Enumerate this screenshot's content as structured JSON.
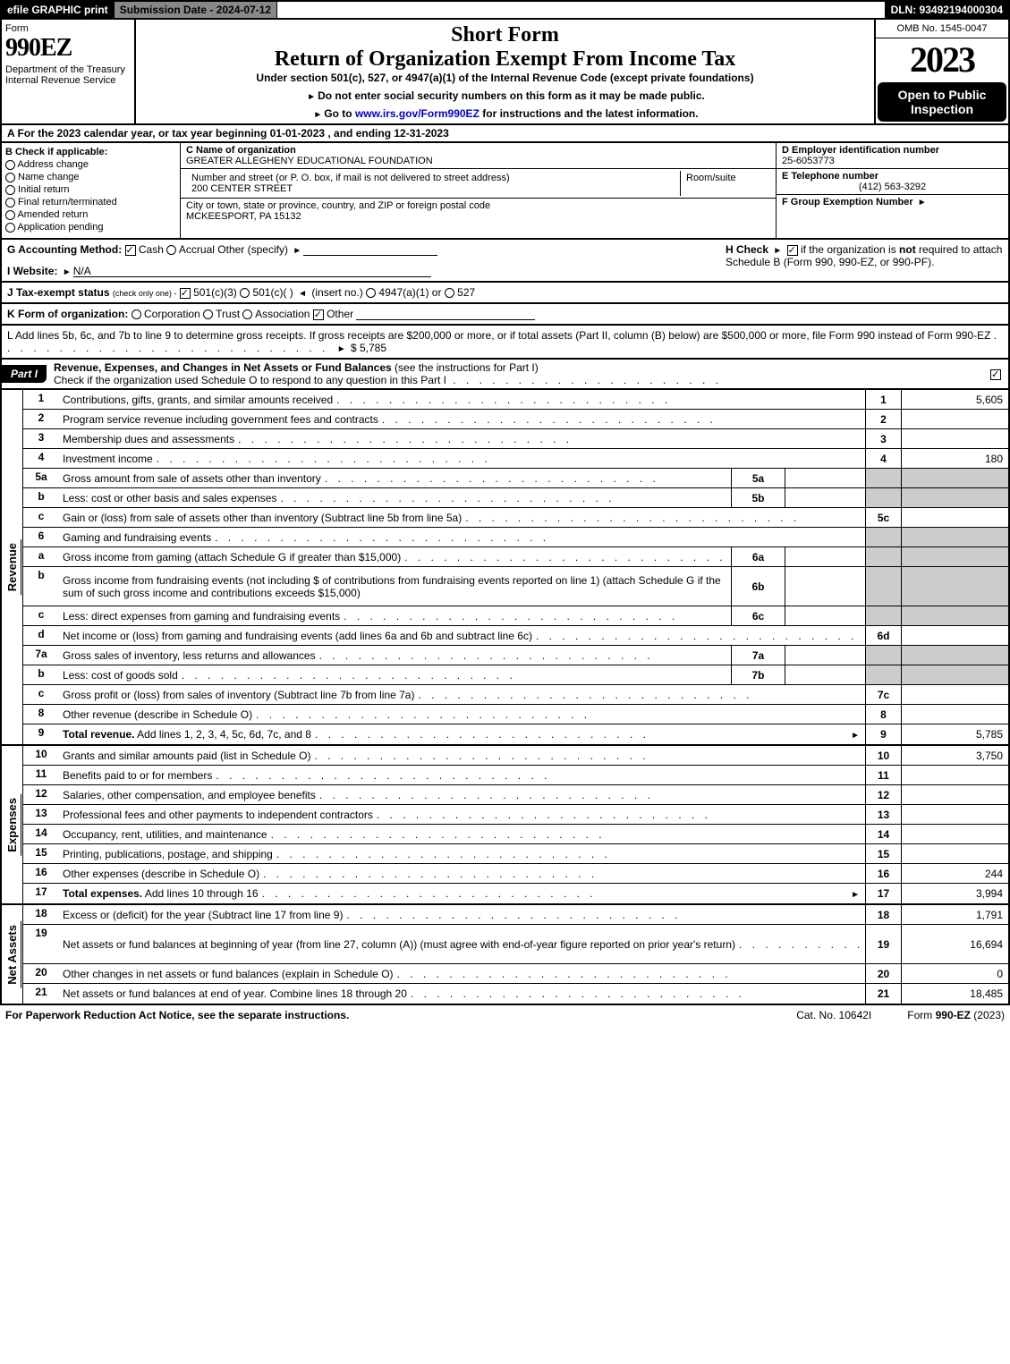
{
  "topbar": {
    "efile": "efile GRAPHIC print",
    "submission": "Submission Date - 2024-07-12",
    "dln": "DLN: 93492194000304"
  },
  "header": {
    "form": "Form",
    "code": "990EZ",
    "dept": "Department of the Treasury\nInternal Revenue Service",
    "short": "Short Form",
    "title": "Return of Organization Exempt From Income Tax",
    "under": "Under section 501(c), 527, or 4947(a)(1) of the Internal Revenue Code (except private foundations)",
    "note1": "Do not enter social security numbers on this form as it may be made public.",
    "note2_pre": "Go to ",
    "note2_link": "www.irs.gov/Form990EZ",
    "note2_post": " for instructions and the latest information.",
    "omb": "OMB No. 1545-0047",
    "year": "2023",
    "open": "Open to Public Inspection"
  },
  "rowA": "A  For the 2023 calendar year, or tax year beginning 01-01-2023 , and ending 12-31-2023",
  "sectionB": {
    "header": "B  Check if applicable:",
    "items": [
      "Address change",
      "Name change",
      "Initial return",
      "Final return/terminated",
      "Amended return",
      "Application pending"
    ]
  },
  "sectionC": {
    "name_label": "C Name of organization",
    "name": "GREATER ALLEGHENY EDUCATIONAL FOUNDATION",
    "street_label": "Number and street (or P. O. box, if mail is not delivered to street address)",
    "street": "200 CENTER STREET",
    "room_label": "Room/suite",
    "city_label": "City or town, state or province, country, and ZIP or foreign postal code",
    "city": "MCKEESPORT, PA  15132"
  },
  "sectionD": {
    "ein_label": "D Employer identification number",
    "ein": "25-6053773",
    "tel_label": "E Telephone number",
    "tel": "(412) 563-3292",
    "group_label": "F Group Exemption Number"
  },
  "sectionG": {
    "label": "G Accounting Method:",
    "cash": "Cash",
    "accrual": "Accrual",
    "other": "Other (specify)"
  },
  "sectionH": {
    "text_pre": "H  Check",
    "text_mid": "if the organization is ",
    "not": "not",
    "text_post": " required to attach Schedule B (Form 990, 990-EZ, or 990-PF)."
  },
  "sectionI": {
    "label": "I Website:",
    "value": "N/A"
  },
  "sectionJ": {
    "label": "J Tax-exempt status",
    "sub": "(check only one) -",
    "opt1": "501(c)(3)",
    "opt2": "501(c)(  )",
    "insert": "(insert no.)",
    "opt3": "4947(a)(1) or",
    "opt4": "527"
  },
  "sectionK": {
    "label": "K Form of organization:",
    "opts": [
      "Corporation",
      "Trust",
      "Association",
      "Other"
    ]
  },
  "sectionL": {
    "text": "L Add lines 5b, 6c, and 7b to line 9 to determine gross receipts. If gross receipts are $200,000 or more, or if total assets (Part II, column (B) below) are $500,000 or more, file Form 990 instead of Form 990-EZ",
    "amount": "$ 5,785"
  },
  "partI": {
    "tab": "Part I",
    "title": "Revenue, Expenses, and Changes in Net Assets or Fund Balances",
    "sub": "(see the instructions for Part I)",
    "check": "Check if the organization used Schedule O to respond to any question in this Part I"
  },
  "revenue": {
    "label": "Revenue",
    "rows": [
      {
        "n": "1",
        "desc": "Contributions, gifts, grants, and similar amounts received",
        "ln": "1",
        "amt": "5,605"
      },
      {
        "n": "2",
        "desc": "Program service revenue including government fees and contracts",
        "ln": "2",
        "amt": ""
      },
      {
        "n": "3",
        "desc": "Membership dues and assessments",
        "ln": "3",
        "amt": ""
      },
      {
        "n": "4",
        "desc": "Investment income",
        "ln": "4",
        "amt": "180"
      },
      {
        "n": "5a",
        "desc": "Gross amount from sale of assets other than inventory",
        "sub": "5a",
        "grey": true
      },
      {
        "n": "b",
        "desc": "Less: cost or other basis and sales expenses",
        "sub": "5b",
        "grey": true
      },
      {
        "n": "c",
        "desc": "Gain or (loss) from sale of assets other than inventory (Subtract line 5b from line 5a)",
        "ln": "5c",
        "amt": ""
      },
      {
        "n": "6",
        "desc": "Gaming and fundraising events",
        "grey": true,
        "nolines": true
      },
      {
        "n": "a",
        "desc": "Gross income from gaming (attach Schedule G if greater than $15,000)",
        "sub": "6a",
        "grey": true
      },
      {
        "n": "b",
        "desc": "Gross income from fundraising events (not including $                  of contributions from fundraising events reported on line 1) (attach Schedule G if the sum of such gross income and contributions exceeds $15,000)",
        "sub": "6b",
        "grey": true,
        "tall": true
      },
      {
        "n": "c",
        "desc": "Less: direct expenses from gaming and fundraising events",
        "sub": "6c",
        "grey": true
      },
      {
        "n": "d",
        "desc": "Net income or (loss) from gaming and fundraising events (add lines 6a and 6b and subtract line 6c)",
        "ln": "6d",
        "amt": ""
      },
      {
        "n": "7a",
        "desc": "Gross sales of inventory, less returns and allowances",
        "sub": "7a",
        "grey": true
      },
      {
        "n": "b",
        "desc": "Less: cost of goods sold",
        "sub": "7b",
        "grey": true
      },
      {
        "n": "c",
        "desc": "Gross profit or (loss) from sales of inventory (Subtract line 7b from line 7a)",
        "ln": "7c",
        "amt": ""
      },
      {
        "n": "8",
        "desc": "Other revenue (describe in Schedule O)",
        "ln": "8",
        "amt": ""
      },
      {
        "n": "9",
        "desc": "Total revenue. Add lines 1, 2, 3, 4, 5c, 6d, 7c, and 8",
        "ln": "9",
        "amt": "5,785",
        "bold": true,
        "arrow": true
      }
    ]
  },
  "expenses": {
    "label": "Expenses",
    "rows": [
      {
        "n": "10",
        "desc": "Grants and similar amounts paid (list in Schedule O)",
        "ln": "10",
        "amt": "3,750"
      },
      {
        "n": "11",
        "desc": "Benefits paid to or for members",
        "ln": "11",
        "amt": ""
      },
      {
        "n": "12",
        "desc": "Salaries, other compensation, and employee benefits",
        "ln": "12",
        "amt": ""
      },
      {
        "n": "13",
        "desc": "Professional fees and other payments to independent contractors",
        "ln": "13",
        "amt": ""
      },
      {
        "n": "14",
        "desc": "Occupancy, rent, utilities, and maintenance",
        "ln": "14",
        "amt": ""
      },
      {
        "n": "15",
        "desc": "Printing, publications, postage, and shipping",
        "ln": "15",
        "amt": ""
      },
      {
        "n": "16",
        "desc": "Other expenses (describe in Schedule O)",
        "ln": "16",
        "amt": "244"
      },
      {
        "n": "17",
        "desc": "Total expenses. Add lines 10 through 16",
        "ln": "17",
        "amt": "3,994",
        "bold": true,
        "arrow": true
      }
    ]
  },
  "netassets": {
    "label": "Net Assets",
    "rows": [
      {
        "n": "18",
        "desc": "Excess or (deficit) for the year (Subtract line 17 from line 9)",
        "ln": "18",
        "amt": "1,791"
      },
      {
        "n": "19",
        "desc": "Net assets or fund balances at beginning of year (from line 27, column (A)) (must agree with end-of-year figure reported on prior year's return)",
        "ln": "19",
        "amt": "16,694",
        "tall": true
      },
      {
        "n": "20",
        "desc": "Other changes in net assets or fund balances (explain in Schedule O)",
        "ln": "20",
        "amt": "0"
      },
      {
        "n": "21",
        "desc": "Net assets or fund balances at end of year. Combine lines 18 through 20",
        "ln": "21",
        "amt": "18,485"
      }
    ]
  },
  "footer": {
    "left": "For Paperwork Reduction Act Notice, see the separate instructions.",
    "mid": "Cat. No. 10642I",
    "right_pre": "Form ",
    "right_bold": "990-EZ",
    "right_post": " (2023)"
  }
}
